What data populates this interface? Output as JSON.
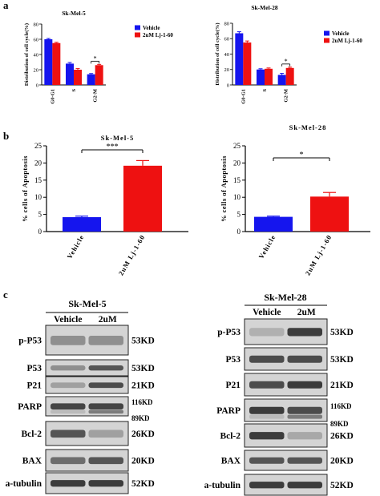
{
  "panel_labels": {
    "a": "a",
    "b": "b",
    "c": "c"
  },
  "colors": {
    "vehicle": "#1515ee",
    "treated": "#ee1111",
    "blot_bg": "#d4d4d4"
  },
  "chart_data": [
    {
      "id": "a1",
      "type": "bar",
      "title": "Sk-Mel-5",
      "ylabel": "Distribution of cell cycle(%)",
      "categories": [
        "G0-G1",
        "S",
        "G2-M"
      ],
      "ylim": [
        0,
        80
      ],
      "yticks": [
        0,
        20,
        40,
        60,
        80
      ],
      "series": [
        {
          "name": "Vehicle",
          "values": [
            60,
            28,
            14
          ]
        },
        {
          "name": "2uM Lj-1-60",
          "values": [
            55,
            20,
            26
          ]
        }
      ],
      "errors": [
        [
          1,
          1.5,
          1
        ],
        [
          1,
          1.5,
          1
        ]
      ],
      "significance": [
        {
          "category": "G2-M",
          "label": "*"
        }
      ],
      "legend": "right"
    },
    {
      "id": "a2",
      "type": "bar",
      "title": "Sk-Mel-28",
      "ylabel": "Distribution of cell cycle(%)",
      "categories": [
        "G0-G1",
        "S",
        "G2-M"
      ],
      "ylim": [
        0,
        80
      ],
      "yticks": [
        0,
        20,
        40,
        60,
        80
      ],
      "series": [
        {
          "name": "Vehicle",
          "values": [
            67,
            20,
            13
          ]
        },
        {
          "name": "2uM Lj-1-60",
          "values": [
            55,
            21,
            22
          ]
        }
      ],
      "errors": [
        [
          2,
          1,
          2
        ],
        [
          2,
          1,
          1
        ]
      ],
      "significance": [
        {
          "category": "G2-M",
          "label": "*"
        }
      ],
      "legend": "top-right"
    },
    {
      "id": "b1",
      "type": "bar",
      "title": "Sk-Mel-5",
      "ylabel": "% cells of Apoptosis",
      "categories": [
        "Vehicle",
        "2uM Lj-1-60"
      ],
      "ylim": [
        0,
        25
      ],
      "yticks": [
        0,
        5,
        10,
        15,
        20,
        25
      ],
      "values": [
        4.2,
        19.2
      ],
      "errors": [
        0.3,
        1.5
      ],
      "significance": {
        "label": "***"
      }
    },
    {
      "id": "b2",
      "type": "bar",
      "title": "Sk-Mel-28",
      "ylabel": "% cells of Apoptosis",
      "categories": [
        "Vehicle",
        "2uM Lj-1-60"
      ],
      "ylim": [
        0,
        25
      ],
      "yticks": [
        0,
        5,
        10,
        15,
        20,
        25
      ],
      "values": [
        4.3,
        10.2
      ],
      "errors": [
        0.2,
        1.2
      ],
      "significance": {
        "label": "*"
      }
    }
  ],
  "western_blot": {
    "left": {
      "title": "Sk-Mel-5",
      "lanes": [
        "Vehicle",
        "2uM"
      ],
      "rows": [
        {
          "protein": "p-P53",
          "size": "53KD",
          "intensity": [
            0.35,
            0.35
          ]
        },
        {
          "protein": "P53",
          "size": "53KD",
          "intensity": [
            0.35,
            0.7
          ]
        },
        {
          "protein": "P21",
          "size": "21KD",
          "intensity": [
            0.25,
            0.75
          ]
        },
        {
          "protein": "PARP",
          "size": "116KD",
          "size2": "89KD",
          "intensity": [
            0.8,
            0.8
          ]
        },
        {
          "protein": "Bcl-2",
          "size": "26KD",
          "intensity": [
            0.7,
            0.25
          ]
        },
        {
          "protein": "BAX",
          "size": "20KD",
          "intensity": [
            0.55,
            0.7
          ]
        },
        {
          "protein": "a-tubulin",
          "size": "52KD",
          "intensity": [
            0.85,
            0.85
          ]
        }
      ]
    },
    "right": {
      "title": "Sk-Mel-28",
      "lanes": [
        "Vehicle",
        "2uM"
      ],
      "rows": [
        {
          "protein": "p-P53",
          "size": "53KD",
          "intensity": [
            0.15,
            0.85
          ]
        },
        {
          "protein": "P53",
          "size": "53KD",
          "intensity": [
            0.75,
            0.75
          ]
        },
        {
          "protein": "P21",
          "size": "21KD",
          "intensity": [
            0.75,
            0.85
          ]
        },
        {
          "protein": "PARP",
          "size": "116KD",
          "size2": "89KD",
          "intensity": [
            0.85,
            0.75
          ]
        },
        {
          "protein": "Bcl-2",
          "size": "26KD",
          "intensity": [
            0.85,
            0.2
          ]
        },
        {
          "protein": "BAX",
          "size": "20KD",
          "intensity": [
            0.7,
            0.7
          ]
        },
        {
          "protein": "a-tubulin",
          "size": "52KD",
          "intensity": [
            0.85,
            0.85
          ]
        }
      ]
    }
  }
}
